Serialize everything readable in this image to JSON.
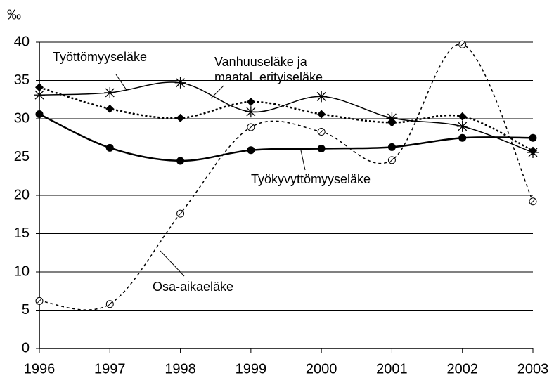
{
  "chart_data": {
    "type": "line",
    "y_label": "‰",
    "x": [
      1996,
      1997,
      1998,
      1999,
      2000,
      2001,
      2002,
      2003
    ],
    "xlim": [
      1996,
      2003
    ],
    "xticks": [
      1996,
      1997,
      1998,
      1999,
      2000,
      2001,
      2002,
      2003
    ],
    "ylim": [
      0,
      40
    ],
    "yticks": [
      0,
      5,
      10,
      15,
      20,
      25,
      30,
      35,
      40
    ],
    "grid": true,
    "series": [
      {
        "name": "Työttömyyseläke",
        "color": "#000000",
        "line_style": "solid",
        "line_width": 1.5,
        "marker": "asterisk",
        "values": [
          33.1,
          33.4,
          34.7,
          30.9,
          32.9,
          30.1,
          29.0,
          25.6
        ]
      },
      {
        "name": "Vanhuuseläke ja maatal. erityiseläke",
        "color": "#000000",
        "line_style": "dotted",
        "line_width": 2.5,
        "marker": "diamond",
        "values": [
          34.1,
          31.3,
          30.1,
          32.2,
          30.6,
          29.5,
          30.3,
          25.8
        ]
      },
      {
        "name": "Työkyvyttömyyseläke",
        "color": "#000000",
        "line_style": "solid",
        "line_width": 2.5,
        "marker": "filled-circle",
        "values": [
          30.6,
          26.2,
          24.5,
          25.9,
          26.1,
          26.3,
          27.5,
          27.5
        ]
      },
      {
        "name": "Osa-aikaeläke",
        "color": "#000000",
        "line_style": "dashed",
        "line_width": 1.5,
        "marker": "open-circle",
        "values": [
          6.2,
          5.8,
          17.6,
          28.9,
          28.3,
          24.6,
          39.7,
          19.2
        ]
      }
    ]
  }
}
